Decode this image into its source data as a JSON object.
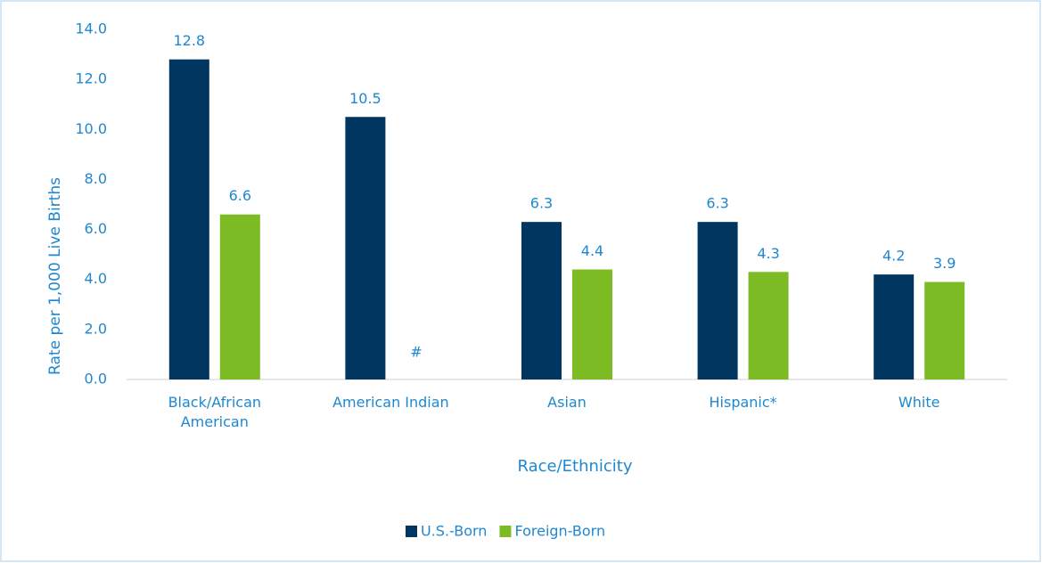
{
  "chart_data": {
    "type": "bar",
    "categories": [
      "Black/African American",
      "American Indian",
      "Asian",
      "Hispanic*",
      "White"
    ],
    "x_label": "Race/Ethnicity",
    "y_label": "Rate per 1,000 Live Births",
    "series": [
      {
        "name": "U.S.-Born",
        "color": "#003660",
        "values": [
          12.8,
          10.5,
          6.3,
          6.3,
          4.2
        ]
      },
      {
        "name": "Foreign-Born",
        "color": "#7cbb24",
        "values": [
          6.6,
          null,
          4.4,
          4.3,
          3.9
        ],
        "value_labels": [
          "6.6",
          "#",
          "4.4",
          "4.3",
          "3.9"
        ]
      }
    ],
    "ylim": [
      0,
      14
    ],
    "yticks": [
      {
        "value": 0,
        "label": "0.0"
      },
      {
        "value": 2,
        "label": "2.0"
      },
      {
        "value": 4,
        "label": "4.0"
      },
      {
        "value": 6,
        "label": "6.0"
      },
      {
        "value": 8,
        "label": "8.0"
      },
      {
        "value": 10,
        "label": "10.0"
      },
      {
        "value": 12,
        "label": "12.0"
      },
      {
        "value": 14,
        "label": "14.0"
      }
    ],
    "grid": false,
    "legend": "bottom"
  }
}
